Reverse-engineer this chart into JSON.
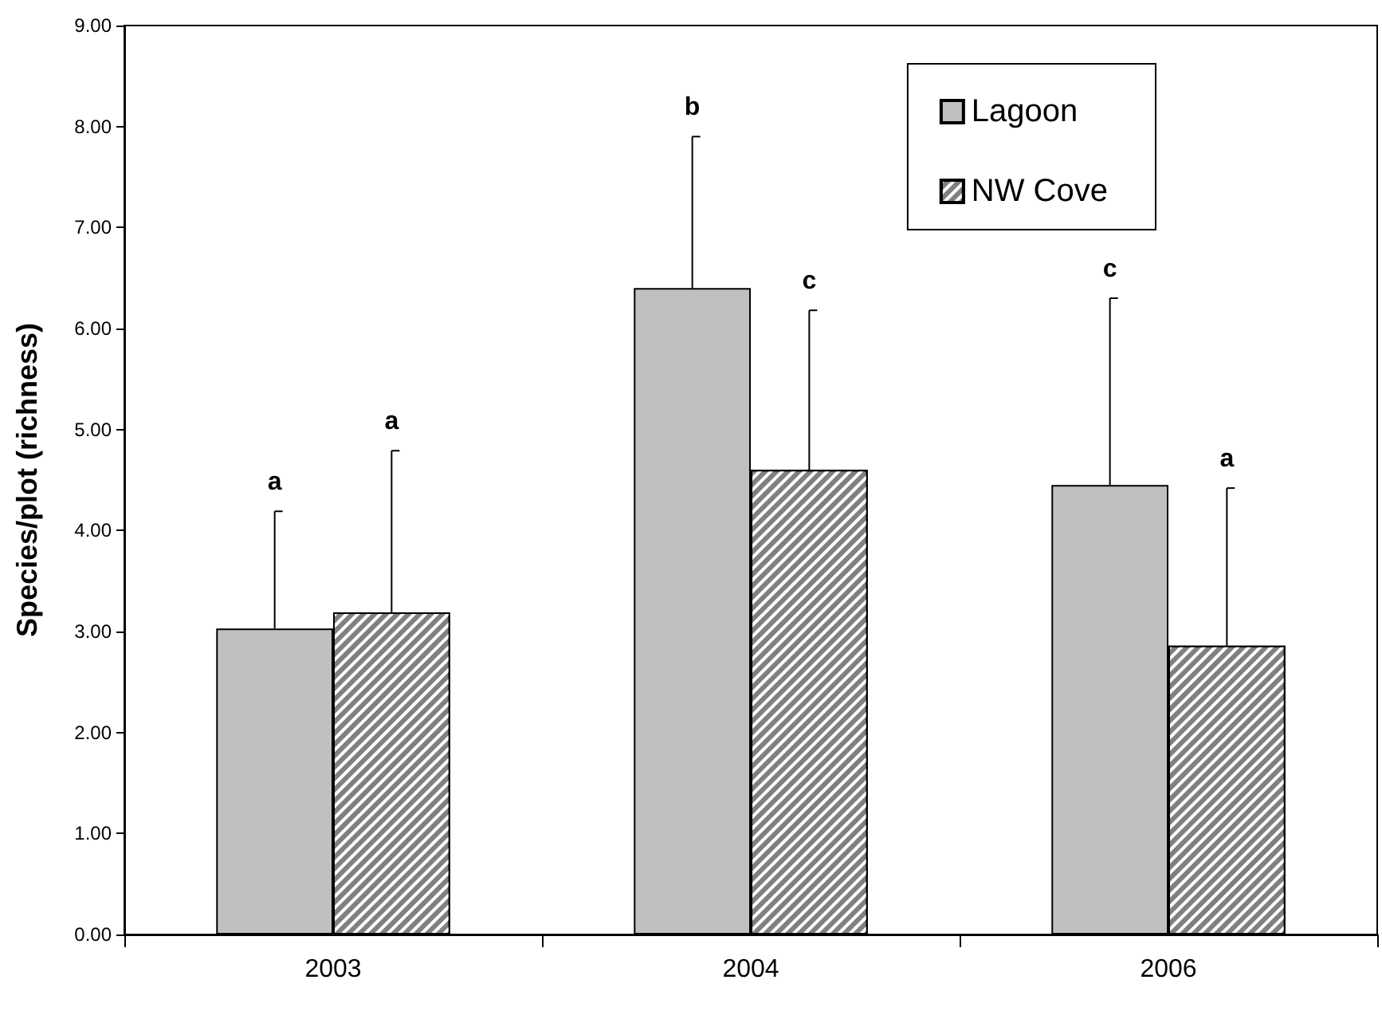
{
  "chart_data": {
    "type": "bar",
    "ylabel": "Species/plot (richness)",
    "categories": [
      "2003",
      "2004",
      "2006"
    ],
    "series": [
      {
        "name": "Lagoon",
        "color": "#c0c0c0",
        "values": [
          3.03,
          6.4,
          4.45
        ],
        "errors": [
          [
            3.03,
            4.19
          ],
          [
            6.4,
            7.9
          ],
          [
            4.45,
            6.3
          ]
        ]
      },
      {
        "name": "NW Cove",
        "color": "#808080",
        "values": [
          3.19,
          4.6,
          2.86
        ],
        "errors": [
          [
            3.19,
            4.79
          ],
          [
            4.6,
            6.18
          ],
          [
            2.86,
            4.42
          ]
        ]
      }
    ],
    "annotations": [
      "a",
      "b",
      "c",
      "a",
      "c",
      "a"
    ],
    "ylim": [
      0,
      9
    ],
    "yticks": [
      {
        "value": 0,
        "label": "0.00"
      },
      {
        "value": 1,
        "label": "1.00"
      },
      {
        "value": 2,
        "label": "2.00"
      },
      {
        "value": 3,
        "label": "3.00"
      },
      {
        "value": 4,
        "label": "4.00"
      },
      {
        "value": 5,
        "label": "5.00"
      },
      {
        "value": 6,
        "label": "6.00"
      },
      {
        "value": 7,
        "label": "7.00"
      },
      {
        "value": 8,
        "label": "8.00"
      },
      {
        "value": 9,
        "label": "9.00"
      }
    ],
    "grid": false,
    "legend": "top right"
  }
}
